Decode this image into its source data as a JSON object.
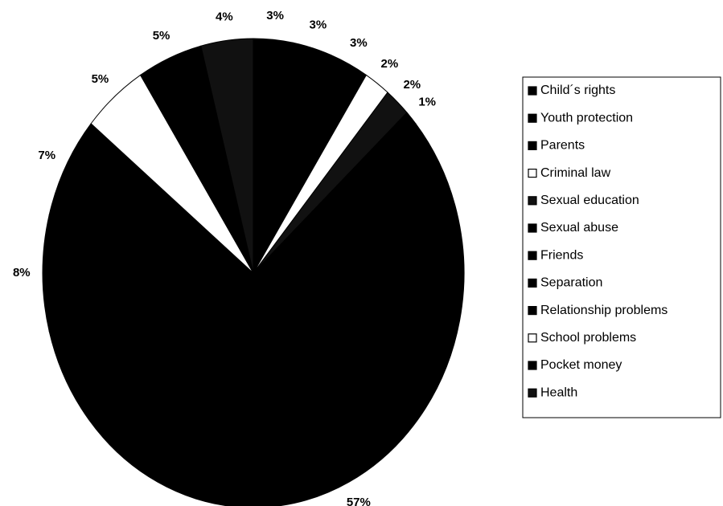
{
  "chart_data": {
    "type": "pie",
    "categories": [
      "Child´s rights",
      "Youth protection",
      "Parents",
      "Criminal law",
      "Sexual education",
      "Sexual abuse",
      "Friends",
      "Separation",
      "Relationship problems",
      "School problems",
      "Pocket money",
      "Health"
    ],
    "values": [
      3,
      3,
      3,
      2,
      2,
      1,
      57,
      8,
      7,
      5,
      5,
      4
    ],
    "value_labels": [
      "3%",
      "3%",
      "3%",
      "2%",
      "2%",
      "1%",
      "57%",
      "8%",
      "7%",
      "5%",
      "5%",
      "4%"
    ],
    "colors": [
      "#000000",
      "#000000",
      "#000000",
      "#ffffff",
      "#111111",
      "#000000",
      "#000000",
      "#000000",
      "#000000",
      "#ffffff",
      "#000000",
      "#111111"
    ]
  }
}
